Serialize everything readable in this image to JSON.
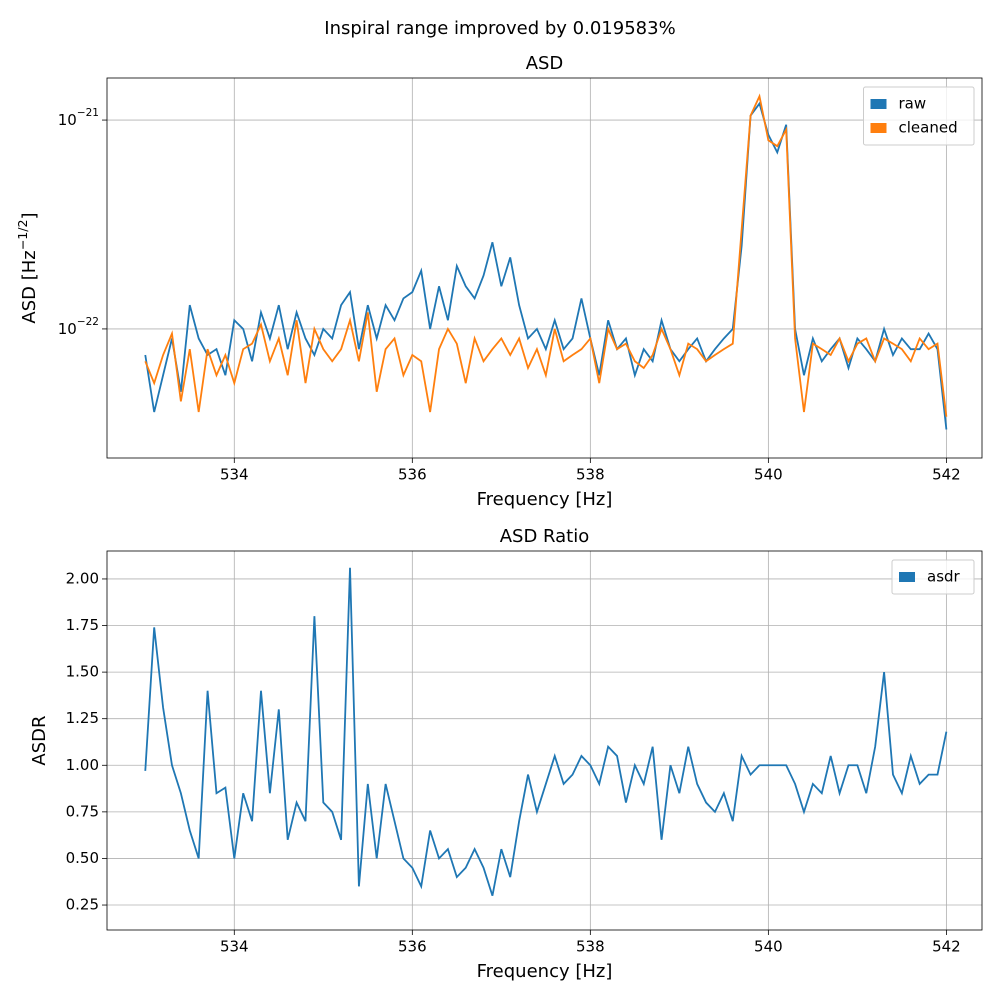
{
  "title": "Inspiral range improved by 0.019583%",
  "chart_data": [
    {
      "type": "line",
      "title": "ASD",
      "xlabel": "Frequency [Hz]",
      "ylabel": "ASD [Hz−1/2]",
      "x": [
        533,
        533.1,
        533.2,
        533.3,
        533.4,
        533.5,
        533.6,
        533.7,
        533.8,
        533.9,
        534,
        534.1,
        534.2,
        534.3,
        534.4,
        534.5,
        534.6,
        534.7,
        534.8,
        534.9,
        535,
        535.1,
        535.2,
        535.3,
        535.4,
        535.5,
        535.6,
        535.7,
        535.8,
        535.9,
        536,
        536.1,
        536.2,
        536.3,
        536.4,
        536.5,
        536.6,
        536.7,
        536.8,
        536.9,
        537,
        537.1,
        537.2,
        537.3,
        537.4,
        537.5,
        537.6,
        537.7,
        537.8,
        537.9,
        538,
        538.1,
        538.2,
        538.3,
        538.4,
        538.5,
        538.6,
        538.7,
        538.8,
        538.9,
        539,
        539.1,
        539.2,
        539.3,
        539.4,
        539.5,
        539.6,
        539.7,
        539.8,
        539.9,
        540,
        540.1,
        540.2,
        540.3,
        540.4,
        540.5,
        540.6,
        540.7,
        540.8,
        540.9,
        541,
        541.1,
        541.2,
        541.3,
        541.4,
        541.5,
        541.6,
        541.7,
        541.8,
        541.9,
        542
      ],
      "series": [
        {
          "name": "raw",
          "color": "#1f77b4",
          "values": [
            7.5e-23,
            4e-23,
            6e-23,
            9e-23,
            5e-23,
            1.3e-22,
            9e-23,
            7.5e-23,
            8e-23,
            6e-23,
            1.1e-22,
            1e-22,
            7e-23,
            1.2e-22,
            9e-23,
            1.3e-22,
            8e-23,
            1.2e-22,
            9e-23,
            7.5e-23,
            1e-22,
            9e-23,
            1.3e-22,
            1.5e-22,
            8e-23,
            1.3e-22,
            9e-23,
            1.3e-22,
            1.1e-22,
            1.4e-22,
            1.5e-22,
            1.9e-22,
            1e-22,
            1.6e-22,
            1.1e-22,
            2e-22,
            1.6e-22,
            1.4e-22,
            1.8e-22,
            2.6e-22,
            1.6e-22,
            2.2e-22,
            1.3e-22,
            9e-23,
            1e-22,
            8e-23,
            1.1e-22,
            8e-23,
            9e-23,
            1.4e-22,
            9e-23,
            6e-23,
            1.1e-22,
            8e-23,
            9e-23,
            6e-23,
            8e-23,
            7e-23,
            1.1e-22,
            8e-23,
            7e-23,
            8e-23,
            9e-23,
            7e-23,
            8e-23,
            9e-23,
            1e-22,
            2.5e-22,
            1.05e-21,
            1.2e-21,
            8.5e-22,
            7e-22,
            9.5e-22,
            1e-22,
            6e-23,
            9e-23,
            7e-23,
            8e-23,
            9e-23,
            6.5e-23,
            9e-23,
            8e-23,
            7e-23,
            1e-22,
            7.5e-23,
            9e-23,
            8e-23,
            8e-23,
            9.5e-23,
            8e-23,
            3.3e-23
          ]
        },
        {
          "name": "cleaned",
          "color": "#ff7f0e",
          "values": [
            7e-23,
            5.5e-23,
            7.5e-23,
            9.5e-23,
            4.5e-23,
            8e-23,
            4e-23,
            8e-23,
            6e-23,
            7.5e-23,
            5.5e-23,
            8e-23,
            8.5e-23,
            1.05e-22,
            7e-23,
            9e-23,
            6e-23,
            1.1e-22,
            5.5e-23,
            1e-22,
            8e-23,
            7e-23,
            8e-23,
            1.1e-22,
            7e-23,
            1.2e-22,
            5e-23,
            8e-23,
            9e-23,
            6e-23,
            7.5e-23,
            7e-23,
            4e-23,
            8e-23,
            1e-22,
            8.5e-23,
            5.5e-23,
            9e-23,
            7e-23,
            8e-23,
            9e-23,
            7.5e-23,
            9e-23,
            6.5e-23,
            8e-23,
            6e-23,
            1e-22,
            7e-23,
            7.5e-23,
            8e-23,
            9e-23,
            5.5e-23,
            1e-22,
            8e-23,
            8.5e-23,
            7e-23,
            6.5e-23,
            7.5e-23,
            1e-22,
            8e-23,
            6e-23,
            8.5e-23,
            8e-23,
            7e-23,
            7.5e-23,
            8e-23,
            8.5e-23,
            3e-22,
            1.05e-21,
            1.3e-21,
            8e-22,
            7.5e-22,
            9e-22,
            9e-23,
            4e-23,
            8.5e-23,
            8e-23,
            7.5e-23,
            9e-23,
            7e-23,
            8.5e-23,
            9e-23,
            7e-23,
            9e-23,
            8.5e-23,
            8e-23,
            7e-23,
            9e-23,
            8e-23,
            8.5e-23,
            3.8e-23
          ]
        }
      ],
      "xlim": [
        532.57,
        542.4
      ],
      "xticks": [
        534,
        536,
        538,
        540,
        542
      ],
      "ylim": [
        2.41e-23,
        1.59e-21
      ],
      "log_y": true,
      "yticks": [
        {
          "value": 1e-22,
          "label": "10−22"
        },
        {
          "value": 1e-21,
          "label": "10−21"
        }
      ],
      "grid": true,
      "legend": "upper right"
    },
    {
      "type": "line",
      "title": "ASD Ratio",
      "xlabel": "Frequency [Hz]",
      "ylabel": "ASDR",
      "x": [
        533,
        533.1,
        533.2,
        533.3,
        533.4,
        533.5,
        533.6,
        533.7,
        533.8,
        533.9,
        534,
        534.1,
        534.2,
        534.3,
        534.4,
        534.5,
        534.6,
        534.7,
        534.8,
        534.9,
        535,
        535.1,
        535.2,
        535.3,
        535.4,
        535.5,
        535.6,
        535.7,
        535.8,
        535.9,
        536,
        536.1,
        536.2,
        536.3,
        536.4,
        536.5,
        536.6,
        536.7,
        536.8,
        536.9,
        537,
        537.1,
        537.2,
        537.3,
        537.4,
        537.5,
        537.6,
        537.7,
        537.8,
        537.9,
        538,
        538.1,
        538.2,
        538.3,
        538.4,
        538.5,
        538.6,
        538.7,
        538.8,
        538.9,
        539,
        539.1,
        539.2,
        539.3,
        539.4,
        539.5,
        539.6,
        539.7,
        539.8,
        539.9,
        540,
        540.1,
        540.2,
        540.3,
        540.4,
        540.5,
        540.6,
        540.7,
        540.8,
        540.9,
        541,
        541.1,
        541.2,
        541.3,
        541.4,
        541.5,
        541.6,
        541.7,
        541.8,
        541.9,
        542
      ],
      "series": [
        {
          "name": "asdr",
          "color": "#1f77b4",
          "values": [
            0.97,
            1.74,
            1.31,
            1.0,
            0.85,
            0.65,
            0.5,
            1.4,
            0.85,
            0.88,
            0.5,
            0.85,
            0.7,
            1.4,
            0.85,
            1.3,
            0.6,
            0.8,
            0.7,
            1.8,
            0.8,
            0.75,
            0.6,
            2.06,
            0.35,
            0.9,
            0.5,
            0.9,
            0.7,
            0.5,
            0.45,
            0.35,
            0.65,
            0.5,
            0.55,
            0.4,
            0.45,
            0.55,
            0.45,
            0.3,
            0.55,
            0.4,
            0.7,
            0.95,
            0.75,
            0.9,
            1.05,
            0.9,
            0.95,
            1.05,
            1.0,
            0.9,
            1.1,
            1.05,
            0.8,
            1.0,
            0.9,
            1.1,
            0.6,
            1.0,
            0.85,
            1.1,
            0.9,
            0.8,
            0.75,
            0.85,
            0.7,
            1.05,
            0.95,
            1.0,
            1.0,
            1.0,
            1.0,
            0.9,
            0.75,
            0.9,
            0.85,
            1.05,
            0.85,
            1.0,
            1.0,
            0.85,
            1.1,
            1.5,
            0.95,
            0.85,
            1.05,
            0.9,
            0.95,
            0.95,
            1.18
          ]
        }
      ],
      "xlim": [
        532.57,
        542.4
      ],
      "xticks": [
        534,
        536,
        538,
        540,
        542
      ],
      "ylim": [
        0.116,
        2.15
      ],
      "yticks": [
        0.25,
        {
          "value": 0.5,
          "label": "0.50"
        },
        0.75,
        {
          "value": 1,
          "label": "1.00"
        },
        1.25,
        {
          "value": 1.5,
          "label": "1.50"
        },
        1.75,
        {
          "value": 2,
          "label": "2.00"
        }
      ],
      "grid": true,
      "legend": "upper right"
    }
  ]
}
